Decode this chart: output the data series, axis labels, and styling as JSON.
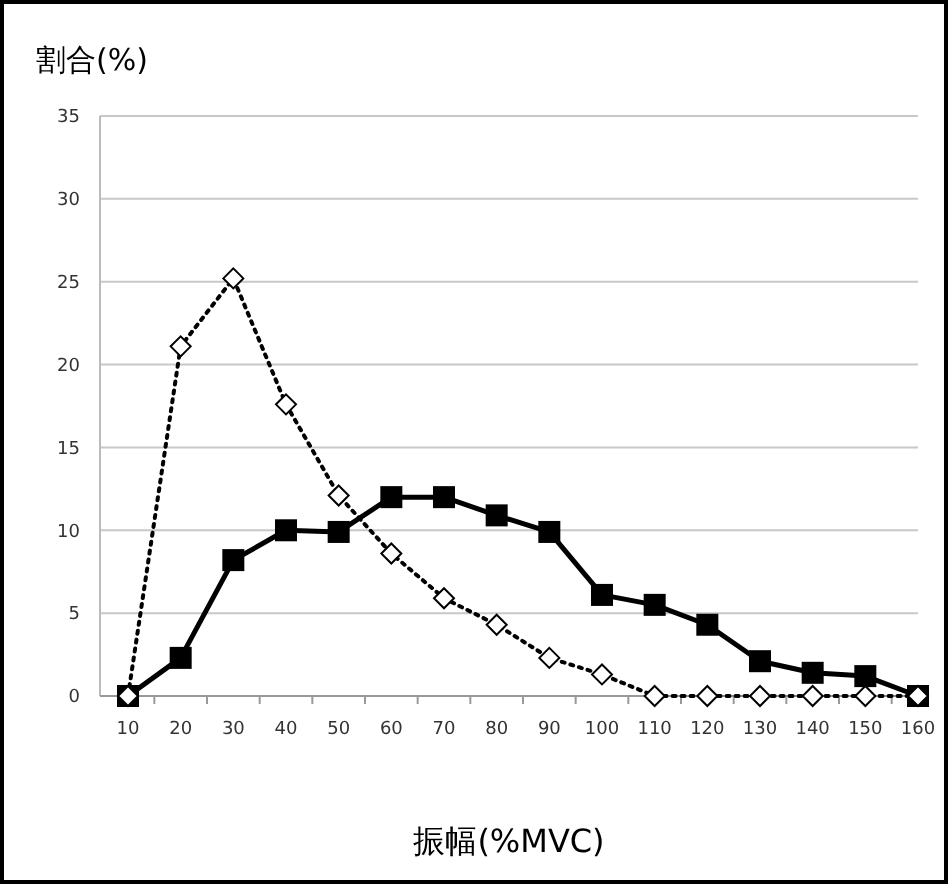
{
  "chart_data": {
    "type": "line",
    "ylabel": "割合(%)",
    "xlabel": "振幅(%MVC)",
    "categories": [
      "10",
      "20",
      "30",
      "40",
      "50",
      "60",
      "70",
      "80",
      "90",
      "100",
      "110",
      "120",
      "130",
      "140",
      "150",
      "160"
    ],
    "series": [
      {
        "color": "#000000",
        "marker": "square",
        "line_style": "solid",
        "values": [
          0,
          2.3,
          8.2,
          10,
          9.9,
          12,
          12,
          10.9,
          9.9,
          6.1,
          5.5,
          4.3,
          2.1,
          1.4,
          1.2,
          0
        ]
      },
      {
        "color": "#000000",
        "marker": "diamond",
        "line_style": "dotted",
        "values": [
          0,
          21.1,
          25.2,
          17.6,
          12.1,
          8.6,
          5.9,
          4.3,
          2.3,
          1.3,
          0,
          0,
          0,
          0,
          0,
          0
        ]
      }
    ],
    "ylim": [
      0,
      35
    ],
    "yticks": [
      0,
      5,
      10,
      15,
      20,
      25,
      30,
      35
    ],
    "grid": "y"
  }
}
